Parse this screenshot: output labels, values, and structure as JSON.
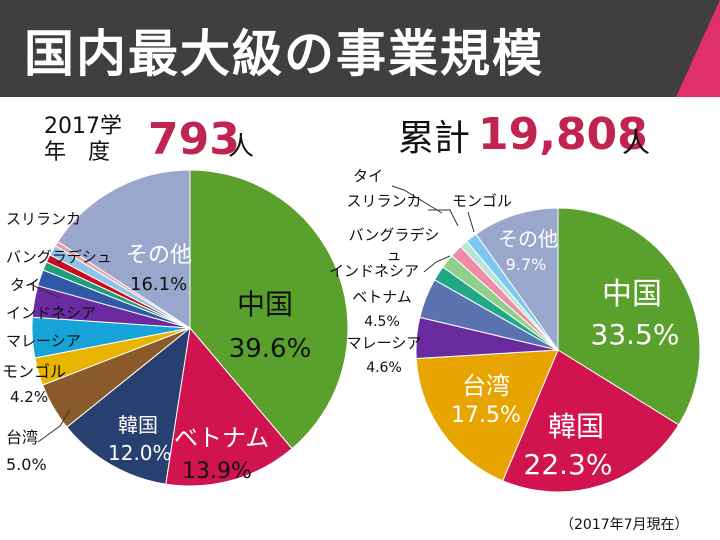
{
  "title": "国内最大級の事業規模",
  "left_header": {
    "year": "2017学",
    "year2": "年　度",
    "count": "793",
    "unit": "人"
  },
  "right_header": {
    "label": "累計",
    "count": "19,808",
    "unit": "人"
  },
  "footnote": "（2017年7月現在）",
  "colors": {
    "header_bg": "#3f3f3f",
    "accent": "#e0306a",
    "number": "#c0254f"
  },
  "chart_data": [
    {
      "type": "pie",
      "title": "2017学年度 793人",
      "slices": [
        {
          "label": "中国",
          "value": 39.6,
          "pct": "39.6%",
          "color": "#5aa02c"
        },
        {
          "label": "ベトナム",
          "value": 13.9,
          "pct": "13.9%",
          "color": "#d11350"
        },
        {
          "label": "韓国",
          "value": 12.0,
          "pct": "12.0%",
          "color": "#27406f"
        },
        {
          "label": "台湾",
          "value": 5.0,
          "pct": "5.0%",
          "color": "#8a5a2b"
        },
        {
          "label": "",
          "value": 2.9,
          "pct": "",
          "color": "#e8b400"
        },
        {
          "label": "モンゴル",
          "value": 4.2,
          "pct": "4.2%",
          "color": "#16a3d8"
        },
        {
          "label": "マレーシア",
          "value": 3.3,
          "pct": "",
          "color": "#6a2aa0"
        },
        {
          "label": "インドネシア",
          "value": 1.7,
          "pct": "",
          "color": "#2f58a6"
        },
        {
          "label": "",
          "value": 0.9,
          "pct": "",
          "color": "#1f9e7a"
        },
        {
          "label": "タイ",
          "value": 0.8,
          "pct": "",
          "color": "#cc0c1c"
        },
        {
          "label": "バングラデシュ",
          "value": 1.1,
          "pct": "",
          "color": "#8fc3e8"
        },
        {
          "label": "スリランカ",
          "value": 0.5,
          "pct": "",
          "color": "#e8a0ac"
        },
        {
          "label": "その他",
          "value": 16.1,
          "pct": "16.1%",
          "color": "#9aa7cc"
        }
      ]
    },
    {
      "type": "pie",
      "title": "累計 19,808人",
      "slices": [
        {
          "label": "中国",
          "value": 33.5,
          "pct": "33.5%",
          "color": "#5aa02c"
        },
        {
          "label": "韓国",
          "value": 22.3,
          "pct": "22.3%",
          "color": "#d11350"
        },
        {
          "label": "台湾",
          "value": 17.5,
          "pct": "17.5%",
          "color": "#e8a400"
        },
        {
          "label": "マレーシア",
          "value": 4.6,
          "pct": "4.6%",
          "color": "#6a2aa0"
        },
        {
          "label": "ベトナム",
          "value": 4.5,
          "pct": "4.5%",
          "color": "#5b72b0"
        },
        {
          "label": "インドネシア",
          "value": 1.7,
          "pct": "",
          "color": "#22a886"
        },
        {
          "label": "バングラデシュ",
          "value": 1.6,
          "pct": "",
          "color": "#8fd18a"
        },
        {
          "label": "タイ",
          "value": 1.4,
          "pct": "",
          "color": "#f08ca6"
        },
        {
          "label": "スリランカ",
          "value": 0.9,
          "pct": "",
          "color": "#b8e4d8"
        },
        {
          "label": "モンゴル",
          "value": 1.3,
          "pct": "",
          "color": "#7cc8ee"
        },
        {
          "label": "その他",
          "value": 9.7,
          "pct": "9.7%",
          "color": "#9aa7cc"
        }
      ]
    }
  ]
}
